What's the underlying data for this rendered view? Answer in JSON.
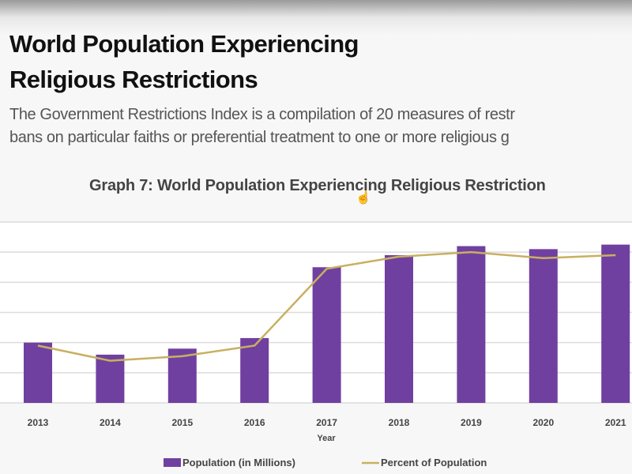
{
  "slide": {
    "title_line1": "World Population Experiencing",
    "title_line2": "Religious Restrictions",
    "desc_line1": "The Government Restrictions Index is a compilation of 20 measures of restr",
    "desc_line2": "bans on particular faiths or preferential treatment to one or more religious g"
  },
  "chart_data": {
    "type": "bar+line",
    "title": "Graph 7: World Population Experiencing Religious Restriction",
    "xlabel": "Year",
    "ylabel": "",
    "categories": [
      "2013",
      "2014",
      "2015",
      "2016",
      "2017",
      "2018",
      "2019",
      "2020",
      "2021"
    ],
    "series": [
      {
        "name": "Population (in Millions)",
        "type": "bar",
        "color": "#7040a0",
        "values": [
          2.0,
          1.6,
          1.8,
          2.15,
          4.5,
          4.9,
          5.2,
          5.1,
          5.25
        ]
      },
      {
        "name": "Percent of Population",
        "type": "line",
        "color": "#c8b060",
        "values": [
          1.9,
          1.4,
          1.55,
          1.9,
          4.45,
          4.85,
          5.0,
          4.8,
          4.9
        ]
      }
    ],
    "ylim": [
      0,
      6
    ],
    "y_ticks_visible": false,
    "grid": true,
    "legend": "bottom"
  }
}
